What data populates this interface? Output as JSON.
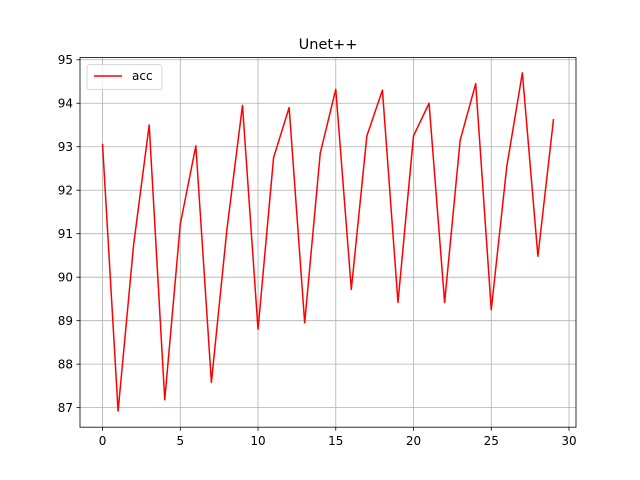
{
  "chart_data": {
    "type": "line",
    "title": "Unet++",
    "xlabel": "",
    "ylabel": "",
    "xlim": [
      -1.45,
      30.45
    ],
    "ylim": [
      86.55,
      95.05
    ],
    "xticks": [
      0,
      5,
      10,
      15,
      20,
      25,
      30
    ],
    "yticks": [
      87,
      88,
      89,
      90,
      91,
      92,
      93,
      94,
      95
    ],
    "grid": true,
    "legend_position": "upper-left",
    "series": [
      {
        "name": "acc",
        "color": "#ff0000",
        "x": [
          0,
          1,
          2,
          3,
          4,
          5,
          6,
          7,
          8,
          9,
          10,
          11,
          12,
          13,
          14,
          15,
          16,
          17,
          18,
          19,
          20,
          21,
          22,
          23,
          24,
          25,
          26,
          27,
          28,
          29
        ],
        "values": [
          93.05,
          86.92,
          90.75,
          93.5,
          87.18,
          91.22,
          93.02,
          87.58,
          91.1,
          93.95,
          88.8,
          92.75,
          93.9,
          88.95,
          92.85,
          94.32,
          89.72,
          93.25,
          94.3,
          89.42,
          93.25,
          94.0,
          89.42,
          93.15,
          94.45,
          89.25,
          92.55,
          94.7,
          90.48,
          93.62
        ]
      }
    ]
  }
}
